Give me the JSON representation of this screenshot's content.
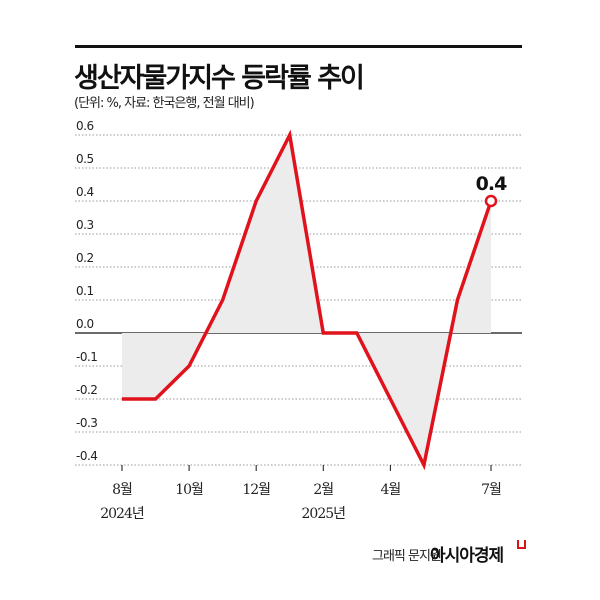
{
  "title": "생산자물가지수 등락률 추이",
  "subtitle": "(단위: %, 자료: 한국은행, 전월 대비)",
  "credit": "그래픽 문지원",
  "brand": "아시아경제",
  "colors": {
    "line": "#e0121b",
    "area": "#ececec",
    "text": "#222222"
  },
  "chart_data": {
    "type": "area",
    "title": "생산자물가지수 등락률 추이",
    "x": [
      "2024-08",
      "2024-09",
      "2024-10",
      "2024-11",
      "2024-12",
      "2025-01",
      "2025-02",
      "2025-03",
      "2025-04",
      "2025-05",
      "2025-06",
      "2025-07"
    ],
    "values": [
      -0.2,
      -0.2,
      -0.1,
      0.1,
      0.4,
      0.6,
      0.0,
      0.0,
      -0.2,
      -0.4,
      0.1,
      0.4
    ],
    "x_tick_labels": [
      {
        "index": 0,
        "label": "8월",
        "sub": "2024년"
      },
      {
        "index": 2,
        "label": "10월",
        "sub": ""
      },
      {
        "index": 4,
        "label": "12월",
        "sub": ""
      },
      {
        "index": 6,
        "label": "2월",
        "sub": "2025년"
      },
      {
        "index": 8,
        "label": "4월",
        "sub": ""
      },
      {
        "index": 11,
        "label": "7월",
        "sub": ""
      }
    ],
    "y_tick_labels": [
      "0.6",
      "0.5",
      "0.4",
      "0.3",
      "0.2",
      "0.1",
      "0.0",
      "-0.1",
      "-0.2",
      "-0.3",
      "-0.4"
    ],
    "ylim": [
      -0.4,
      0.6
    ],
    "grid": true,
    "annotation": {
      "index": 11,
      "text": "0.4"
    }
  }
}
